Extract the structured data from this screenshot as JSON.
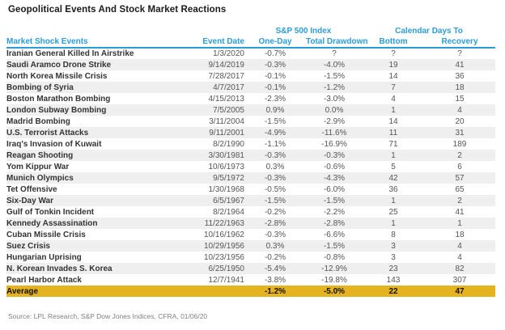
{
  "title": "Geopolitical Events And Stock Market Reactions",
  "source": "Source: LPL Research, S&P Dow Jones Indices, CFRA, 01/06/20",
  "colors": {
    "header_blue": "#2b9cd8",
    "row_stripe": "#efefef",
    "average_gold": "#e5b31f",
    "event_text": "#333333",
    "number_text": "#555555",
    "source_text": "#808080"
  },
  "chart_data": {
    "type": "table",
    "title": "Geopolitical Events And Stock Market Reactions",
    "group_headers": {
      "sp500": "S&P 500 Index",
      "calendar": "Calendar Days To"
    },
    "columns": [
      "Market Shock Events",
      "Event Date",
      "One-Day",
      "Total Drawdown",
      "Bottom",
      "Recovery"
    ],
    "rows": [
      [
        "Iranian General Killed In Airstrike",
        "1/3/2020",
        "-0.7%",
        "?",
        "?",
        "?"
      ],
      [
        "Saudi Aramco Drone Strike",
        "9/14/2019",
        "-0.3%",
        "-4.0%",
        "19",
        "41"
      ],
      [
        "North Korea Missile Crisis",
        "7/28/2017",
        "-0.1%",
        "-1.5%",
        "14",
        "36"
      ],
      [
        "Bombing of Syria",
        "4/7/2017",
        "-0.1%",
        "-1.2%",
        "7",
        "18"
      ],
      [
        "Boston Marathon Bombing",
        "4/15/2013",
        "-2.3%",
        "-3.0%",
        "4",
        "15"
      ],
      [
        "London Subway Bombing",
        "7/5/2005",
        "0.9%",
        "0.0%",
        "1",
        "4"
      ],
      [
        "Madrid Bombing",
        "3/11/2004",
        "-1.5%",
        "-2.9%",
        "14",
        "20"
      ],
      [
        "U.S. Terrorist Attacks",
        "9/11/2001",
        "-4.9%",
        "-11.6%",
        "11",
        "31"
      ],
      [
        "Iraq's Invasion of Kuwait",
        "8/2/1990",
        "-1.1%",
        "-16.9%",
        "71",
        "189"
      ],
      [
        "Reagan Shooting",
        "3/30/1981",
        "-0.3%",
        "-0.3%",
        "1",
        "2"
      ],
      [
        "Yom Kippur War",
        "10/6/1973",
        "0.3%",
        "-0.6%",
        "5",
        "6"
      ],
      [
        "Munich Olympics",
        "9/5/1972",
        "-0.3%",
        "-4.3%",
        "42",
        "57"
      ],
      [
        "Tet Offensive",
        "1/30/1968",
        "-0.5%",
        "-6.0%",
        "36",
        "65"
      ],
      [
        "Six-Day War",
        "6/5/1967",
        "-1.5%",
        "-1.5%",
        "1",
        "2"
      ],
      [
        "Gulf of Tonkin Incident",
        "8/2/1964",
        "-0.2%",
        "-2.2%",
        "25",
        "41"
      ],
      [
        "Kennedy Assassination",
        "11/22/1963",
        "-2.8%",
        "-2.8%",
        "1",
        "1"
      ],
      [
        "Cuban Missile Crisis",
        "10/16/1962",
        "-0.3%",
        "-6.6%",
        "8",
        "18"
      ],
      [
        "Suez Crisis",
        "10/29/1956",
        "0.3%",
        "-1.5%",
        "3",
        "4"
      ],
      [
        "Hungarian Uprising",
        "10/23/1956",
        "-0.2%",
        "-0.8%",
        "3",
        "4"
      ],
      [
        "N. Korean Invades S. Korea",
        "6/25/1950",
        "-5.4%",
        "-12.9%",
        "23",
        "82"
      ],
      [
        "Pearl Harbor Attack",
        "12/7/1941",
        "-3.8%",
        "-19.8%",
        "143",
        "307"
      ]
    ],
    "average": [
      "Average",
      "",
      "-1.2%",
      "-5.0%",
      "22",
      "47"
    ]
  }
}
